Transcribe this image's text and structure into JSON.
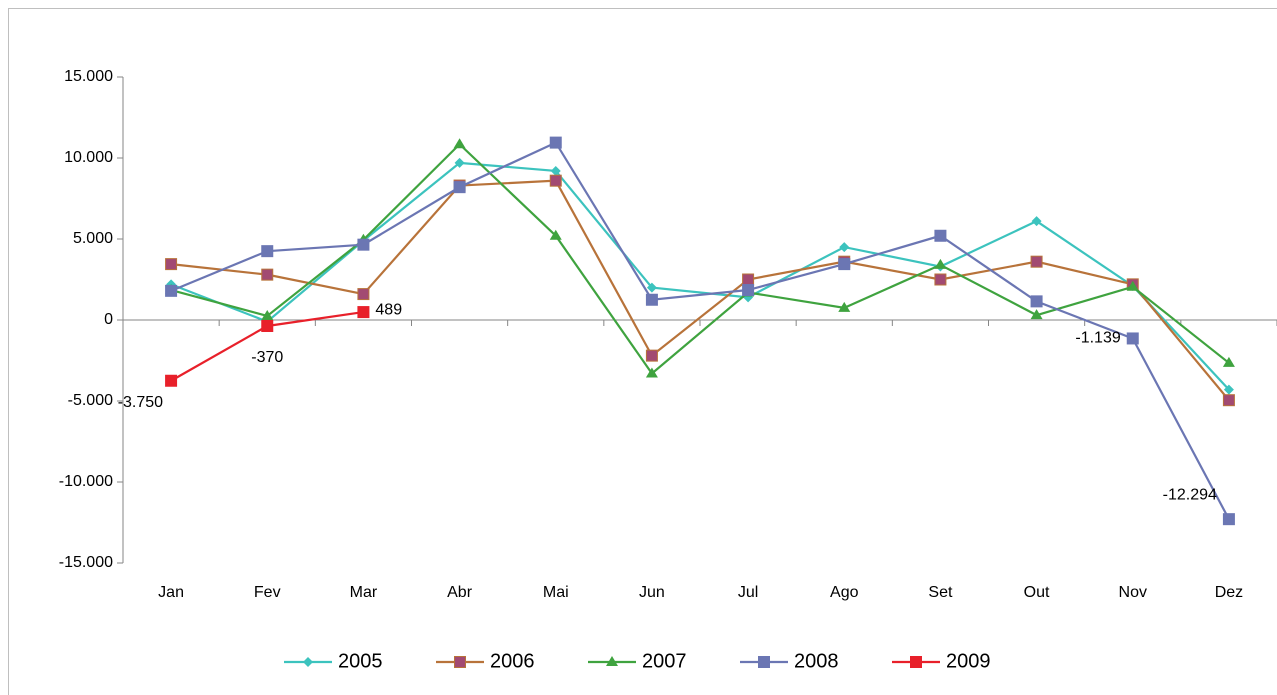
{
  "chart_data": {
    "type": "line",
    "categories": [
      "Jan",
      "Fev",
      "Mar",
      "Abr",
      "Mai",
      "Jun",
      "Jul",
      "Ago",
      "Set",
      "Out",
      "Nov",
      "Dez"
    ],
    "ylim": [
      -15000,
      15000
    ],
    "yticks": [
      {
        "value": -15000,
        "label": "-15.000"
      },
      {
        "value": -10000,
        "label": "-10.000"
      },
      {
        "value": -5000,
        "label": "-5.000"
      },
      0,
      {
        "value": 5000,
        "label": "5.000"
      },
      {
        "value": 10000,
        "label": "10.000"
      },
      {
        "value": 15000,
        "label": "15.000"
      }
    ],
    "grid": false,
    "legend": "bottom",
    "series": [
      {
        "name": "2005",
        "color": "#3cc3be",
        "marker": "diamond",
        "marker_color": "#3cc3be",
        "values": [
          2200,
          -100,
          4900,
          9700,
          9200,
          2000,
          1400,
          4500,
          3300,
          6100,
          2100,
          -4300
        ]
      },
      {
        "name": "2006",
        "color": "#b8733a",
        "marker": "square",
        "marker_color": "#a24a72",
        "values": [
          3450,
          2800,
          1600,
          8300,
          8600,
          -2200,
          2500,
          3600,
          2500,
          3600,
          2200,
          -4950
        ]
      },
      {
        "name": "2007",
        "color": "#3fa33f",
        "marker": "triangle",
        "marker_color": "#3fa33f",
        "values": [
          1850,
          250,
          4950,
          10850,
          5200,
          -3300,
          1700,
          750,
          3400,
          300,
          2050,
          -2650
        ]
      },
      {
        "name": "2008",
        "color": "#6b76b3",
        "marker": "square",
        "marker_color": "#6b76b3",
        "values": [
          1800,
          4250,
          4650,
          8200,
          10950,
          1250,
          1850,
          3450,
          5200,
          1150,
          -1139,
          -12294
        ],
        "value_labels": [
          null,
          null,
          null,
          null,
          null,
          null,
          null,
          null,
          null,
          null,
          "-1.139",
          "-12.294"
        ]
      },
      {
        "name": "2009",
        "color": "#e8202a",
        "marker": "square",
        "marker_color": "#e8202a",
        "values": [
          -3750,
          -370,
          489,
          null,
          null,
          null,
          null,
          null,
          null,
          null,
          null,
          null
        ],
        "value_labels": [
          "-3.750",
          "-370",
          "489",
          null,
          null,
          null,
          null,
          null,
          null,
          null,
          null,
          null
        ]
      }
    ]
  }
}
